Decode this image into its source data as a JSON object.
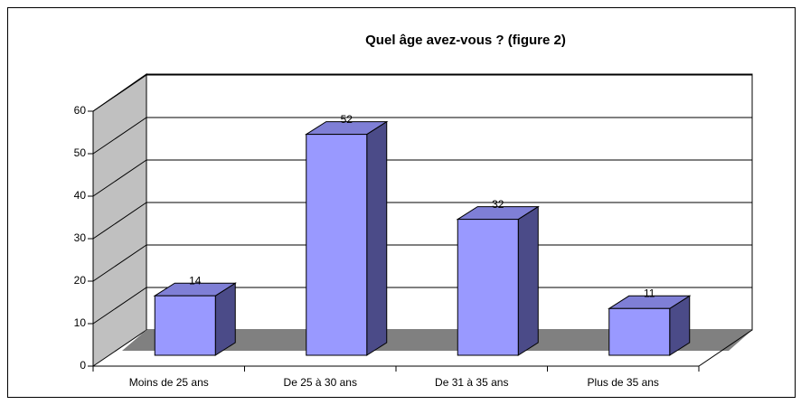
{
  "chart_data": {
    "type": "bar",
    "title": "Quel âge avez-vous ? (figure  2)",
    "categories": [
      "Moins de 25 ans",
      "De 25 à 30 ans",
      "De 31 à 35 ans",
      "Plus de 35 ans"
    ],
    "values": [
      14,
      52,
      32,
      11
    ],
    "color": "#9999ff",
    "ylim": [
      0,
      60
    ],
    "yticks": [
      0,
      10,
      20,
      30,
      40,
      50,
      60
    ],
    "grid": true
  }
}
